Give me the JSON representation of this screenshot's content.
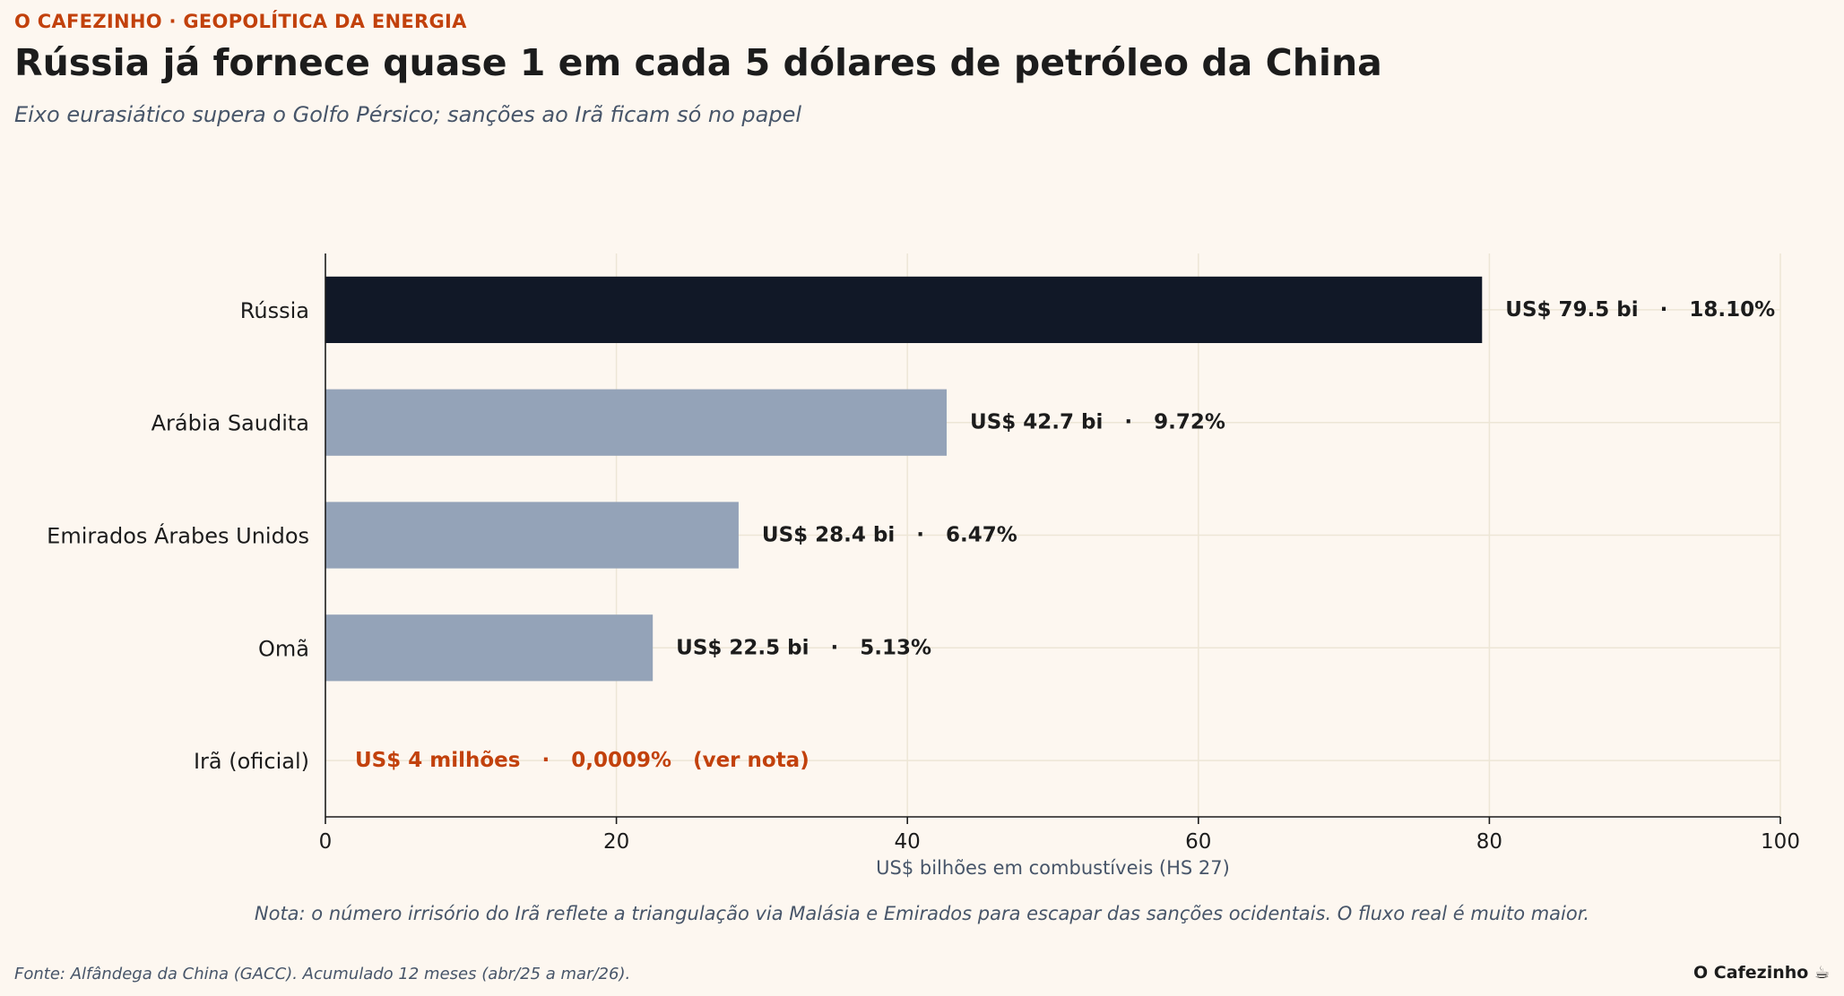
{
  "header": {
    "kicker": "O CAFEZINHO · GEOPOLÍTICA DA ENERGIA",
    "title": "Rússia já fornece quase 1 em cada 5 dólares de petróleo da China",
    "subtitle": "Eixo eurasiático supera o Golfo Pérsico; sanções ao Irã ficam só no papel"
  },
  "footer": {
    "note": "Nota: o número irrisório do Irã reflete a triangulação via Malásia e Emirados para escapar das sanções ocidentais. O fluxo real é muito maior.",
    "source": "Fonte: Alfândega da China (GACC). Acumulado 12 meses (abr/25 a mar/26).",
    "brand": "O Cafezinho ☕"
  },
  "colors": {
    "highlight": "#111827",
    "default": "#94a3b8",
    "accent": "#c2410c",
    "grid": "#ede6d6",
    "text": "#1c1c1c"
  },
  "chart_data": {
    "type": "bar",
    "orientation": "horizontal",
    "categories": [
      "Rússia",
      "Arábia Saudita",
      "Emirados Árabes Unidos",
      "Omã",
      "Irã (oficial)"
    ],
    "values": [
      79.5,
      42.7,
      28.4,
      22.5,
      0.004
    ],
    "data_labels": [
      "US$ 79.5 bi   ·   18.10%",
      "US$ 42.7 bi   ·   9.72%",
      "US$ 28.4 bi   ·   6.47%",
      "US$ 22.5 bi   ·   5.13%",
      "US$ 4 milhões   ·   0,0009%   (ver nota)"
    ],
    "xlabel": "US$ bilhões em combustíveis (HS 27)",
    "ylabel": "",
    "xlim": [
      0,
      100
    ],
    "xticks": [
      0,
      20,
      40,
      60,
      80,
      100
    ],
    "grid": true
  }
}
